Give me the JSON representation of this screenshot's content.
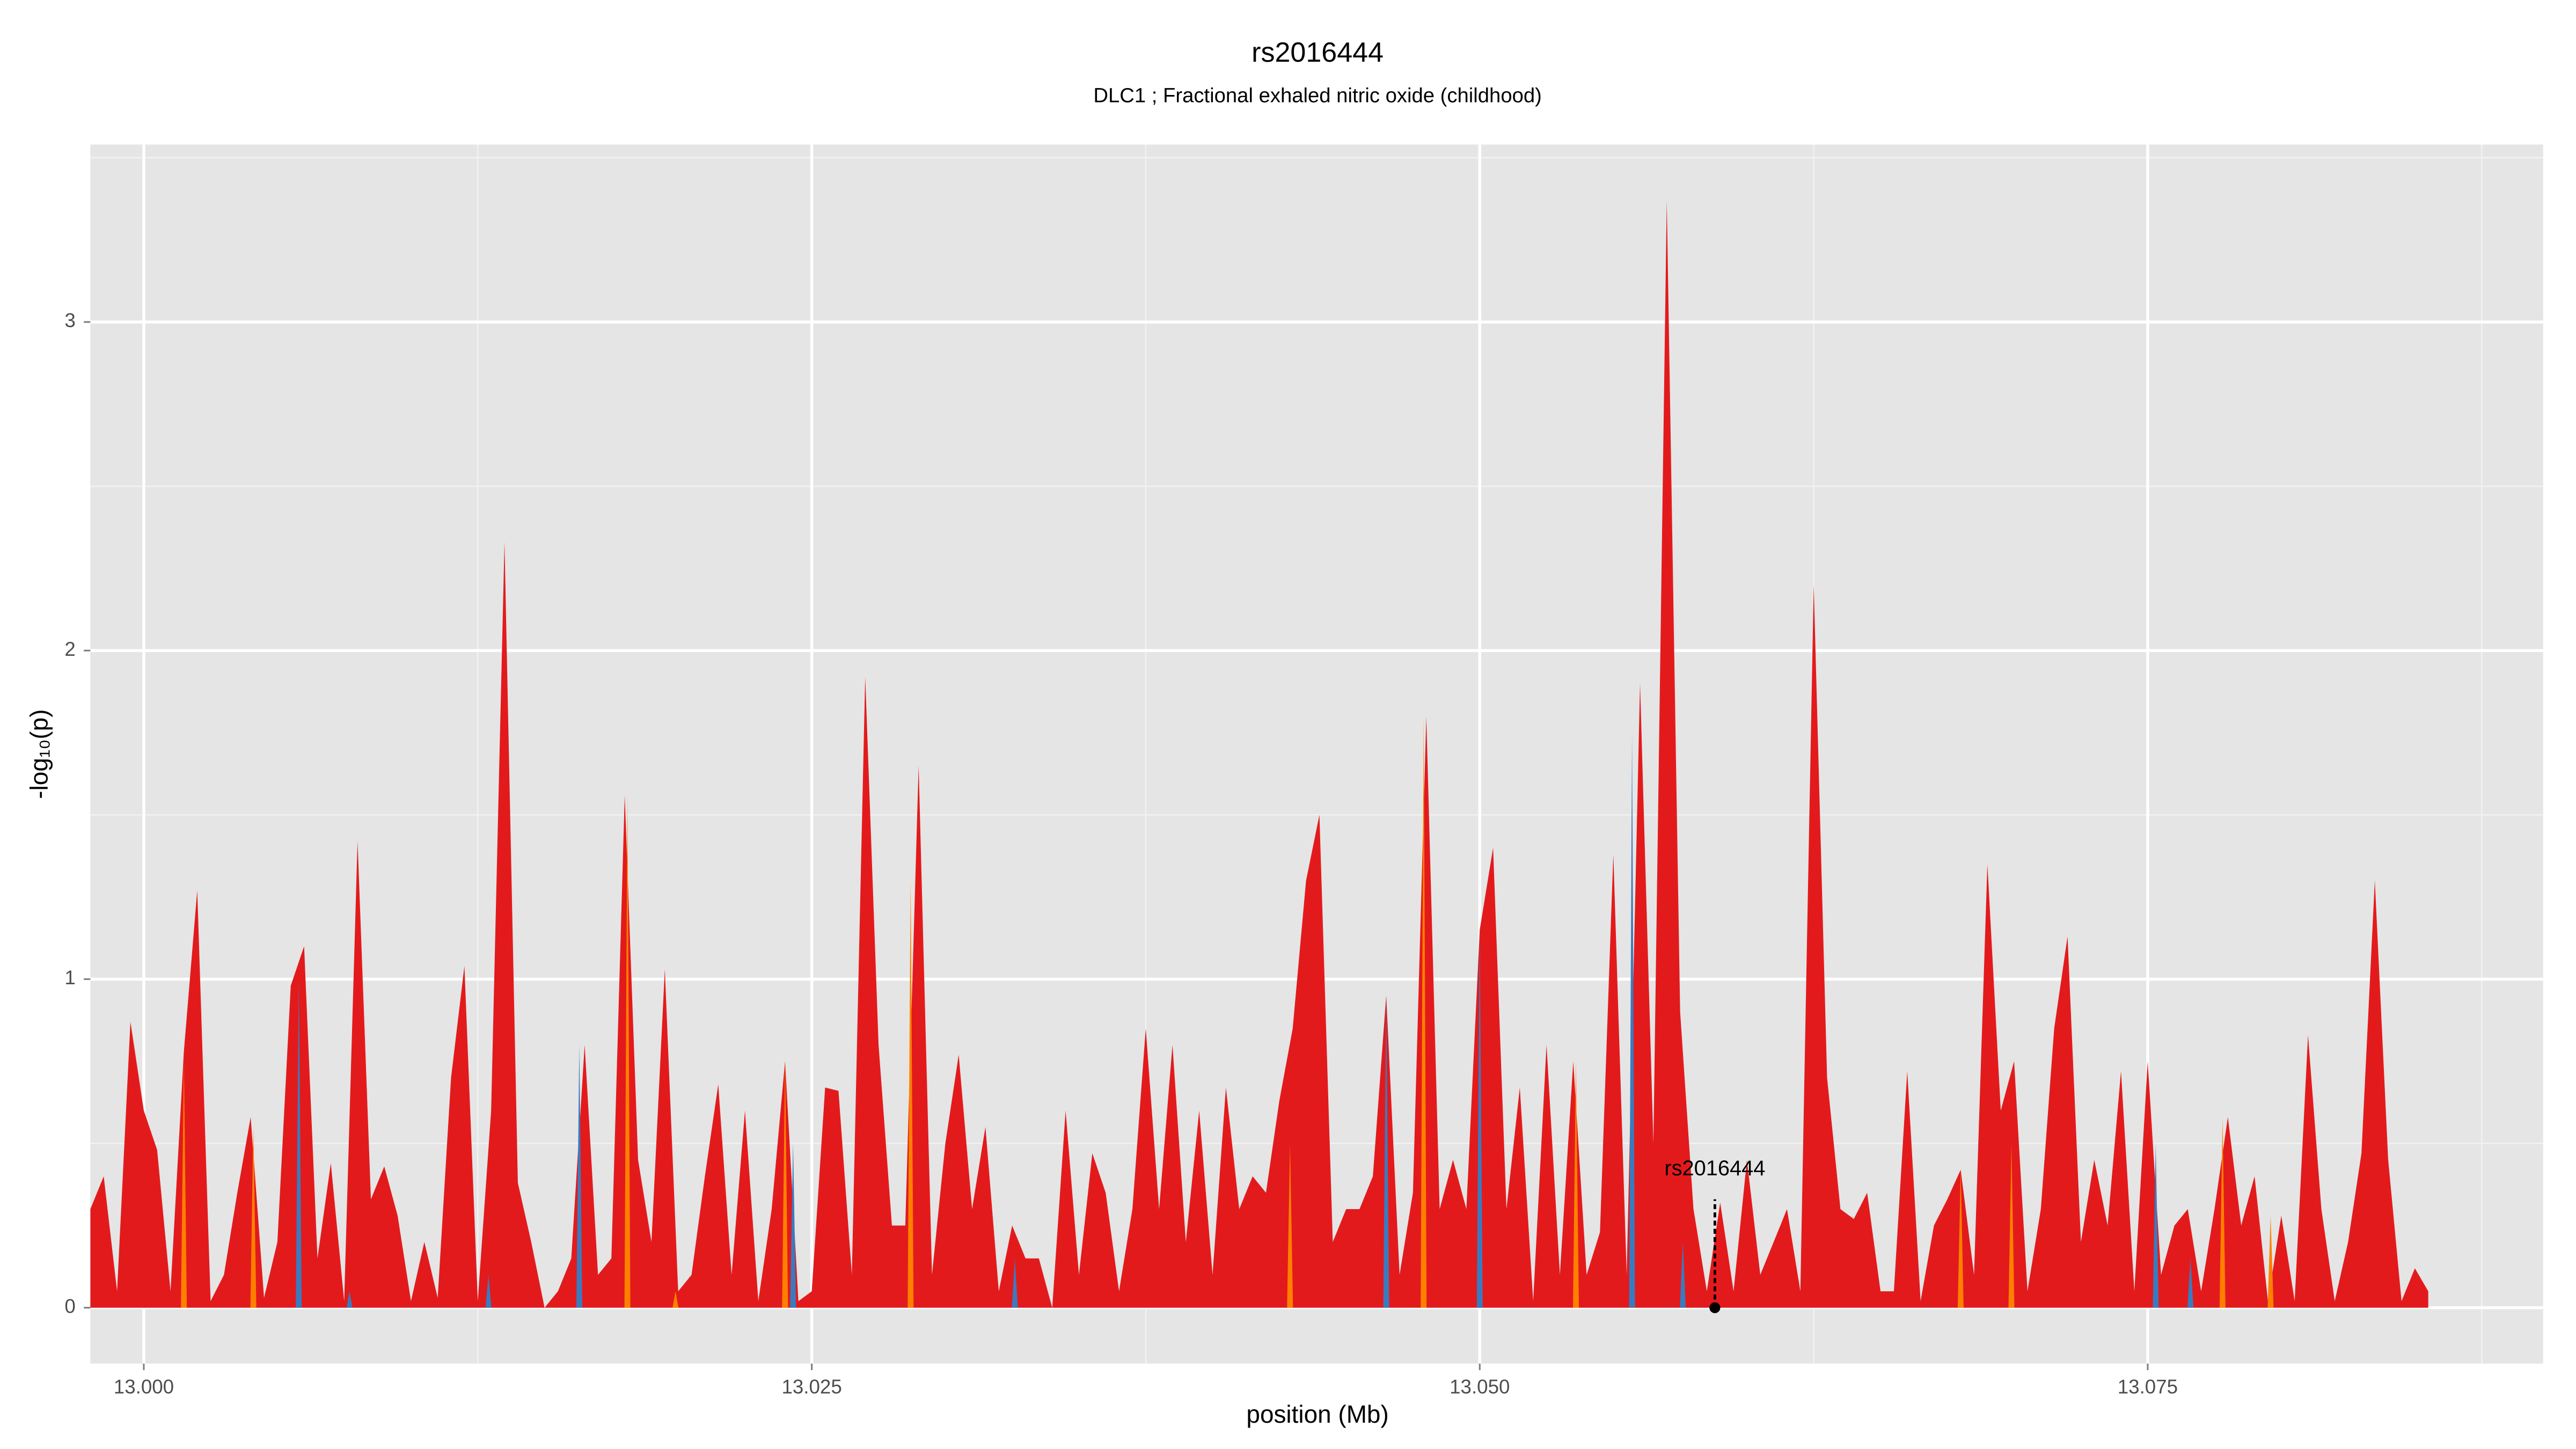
{
  "chart_data": {
    "type": "area",
    "title": "rs2016444",
    "subtitle": "DLC1 ; Fractional exhaled nitric oxide (childhood)",
    "xlabel": "position (Mb)",
    "ylabel": "-log₁₀(p)",
    "xlim": [
      12.998,
      13.0898
    ],
    "ylim": [
      -0.17,
      3.54
    ],
    "xticks": [
      {
        "value": 13.0,
        "label": "13.000"
      },
      {
        "value": 13.025,
        "label": "13.025"
      },
      {
        "value": 13.05,
        "label": "13.050"
      },
      {
        "value": 13.075,
        "label": "13.075"
      }
    ],
    "yticks": [
      0,
      1,
      2,
      3
    ],
    "xminorticks": [
      13.0125,
      13.0375,
      13.0625,
      13.0875
    ],
    "yminorticks": [
      0.5,
      1.5,
      2.5,
      3.5
    ],
    "grid": true,
    "series": [
      {
        "mark": "area",
        "color": "#e31a1c",
        "x": [
          12.998,
          12.9985,
          12.999,
          12.9995,
          13.0,
          13.0005,
          13.001,
          13.0015,
          13.002,
          13.0025,
          13.003,
          13.0035,
          13.004,
          13.0045,
          13.005,
          13.0055,
          13.006,
          13.0065,
          13.007,
          13.0075,
          13.008,
          13.0085,
          13.009,
          13.0095,
          13.01,
          13.0105,
          13.011,
          13.0115,
          13.012,
          13.0125,
          13.013,
          13.0135,
          13.014,
          13.0145,
          13.015,
          13.0155,
          13.016,
          13.0165,
          13.017,
          13.0175,
          13.018,
          13.0185,
          13.019,
          13.0195,
          13.02,
          13.0205,
          13.021,
          13.0215,
          13.022,
          13.0225,
          13.023,
          13.0235,
          13.024,
          13.0245,
          13.025,
          13.0255,
          13.026,
          13.0265,
          13.027,
          13.0275,
          13.028,
          13.0285,
          13.029,
          13.0295,
          13.03,
          13.0305,
          13.031,
          13.0315,
          13.032,
          13.0325,
          13.033,
          13.0335,
          13.034,
          13.0345,
          13.035,
          13.0355,
          13.036,
          13.0365,
          13.037,
          13.0375,
          13.038,
          13.0385,
          13.039,
          13.0395,
          13.04,
          13.0405,
          13.041,
          13.0415,
          13.042,
          13.0425,
          13.043,
          13.0435,
          13.044,
          13.0445,
          13.045,
          13.0455,
          13.046,
          13.0465,
          13.047,
          13.0475,
          13.048,
          13.0485,
          13.049,
          13.0495,
          13.05,
          13.0505,
          13.051,
          13.0515,
          13.052,
          13.0525,
          13.053,
          13.0535,
          13.054,
          13.0545,
          13.055,
          13.0555,
          13.056,
          13.0565,
          13.057,
          13.0575,
          13.058,
          13.0585,
          13.059,
          13.0595,
          13.06,
          13.0605,
          13.061,
          13.0615,
          13.062,
          13.0625,
          13.063,
          13.0635,
          13.064,
          13.0645,
          13.065,
          13.0655,
          13.066,
          13.0665,
          13.067,
          13.0675,
          13.068,
          13.0685,
          13.069,
          13.0695,
          13.07,
          13.0705,
          13.071,
          13.0715,
          13.072,
          13.0725,
          13.073,
          13.0735,
          13.074,
          13.0745,
          13.075,
          13.0755,
          13.076,
          13.0765,
          13.077,
          13.0775,
          13.078,
          13.0785,
          13.079,
          13.0795,
          13.08,
          13.0805,
          13.081,
          13.0815,
          13.082,
          13.0825,
          13.083,
          13.0835,
          13.084,
          13.0845,
          13.085,
          13.0855
        ],
        "values": [
          0.3,
          0.4,
          0.05,
          0.87,
          0.6,
          0.48,
          0.05,
          0.78,
          1.27,
          0.02,
          0.1,
          0.35,
          0.58,
          0.03,
          0.2,
          0.98,
          1.1,
          0.15,
          0.44,
          0.02,
          1.42,
          0.33,
          0.43,
          0.28,
          0.02,
          0.2,
          0.03,
          0.7,
          1.04,
          0.02,
          0.6,
          2.33,
          0.38,
          0.2,
          0.0,
          0.05,
          0.15,
          0.8,
          0.1,
          0.15,
          1.56,
          0.45,
          0.2,
          1.03,
          0.05,
          0.1,
          0.4,
          0.68,
          0.1,
          0.6,
          0.02,
          0.3,
          0.75,
          0.02,
          0.05,
          0.67,
          0.66,
          0.1,
          1.92,
          0.8,
          0.25,
          0.25,
          1.65,
          0.1,
          0.5,
          0.77,
          0.3,
          0.55,
          0.05,
          0.25,
          0.15,
          0.15,
          0.0,
          0.6,
          0.1,
          0.47,
          0.35,
          0.05,
          0.3,
          0.85,
          0.3,
          0.8,
          0.2,
          0.6,
          0.1,
          0.67,
          0.3,
          0.4,
          0.35,
          0.63,
          0.85,
          1.3,
          1.5,
          0.2,
          0.3,
          0.3,
          0.4,
          0.95,
          0.1,
          0.35,
          1.8,
          0.3,
          0.45,
          0.3,
          1.15,
          1.4,
          0.3,
          0.67,
          0.02,
          0.8,
          0.1,
          0.75,
          0.1,
          0.23,
          1.38,
          0.1,
          1.9,
          0.5,
          3.37,
          0.9,
          0.3,
          0.05,
          0.32,
          0.05,
          0.45,
          0.1,
          0.2,
          0.3,
          0.05,
          2.2,
          0.7,
          0.3,
          0.27,
          0.35,
          0.05,
          0.05,
          0.72,
          0.02,
          0.25,
          0.33,
          0.42,
          0.1,
          1.35,
          0.6,
          0.75,
          0.05,
          0.3,
          0.85,
          1.13,
          0.2,
          0.45,
          0.25,
          0.72,
          0.05,
          0.75,
          0.1,
          0.25,
          0.3,
          0.05,
          0.3,
          0.58,
          0.25,
          0.4,
          0.02,
          0.28,
          0.02,
          0.83,
          0.3,
          0.02,
          0.2,
          0.47,
          1.3,
          0.45,
          0.02,
          0.12,
          0.05
        ]
      },
      {
        "mark": "spike",
        "color": "#ff7f00",
        "x": [
          13.0015,
          13.0041,
          13.0181,
          13.0199,
          13.024,
          13.0287,
          13.0429,
          13.0479,
          13.0536,
          13.068,
          13.0699,
          13.0778,
          13.0796
        ],
        "values": [
          0.75,
          0.55,
          1.56,
          0.05,
          0.75,
          1.3,
          0.5,
          1.8,
          0.75,
          0.42,
          0.5,
          0.58,
          0.28
        ]
      },
      {
        "mark": "spike",
        "color": "#3a7bbf",
        "x": [
          13.0058,
          13.0077,
          13.0129,
          13.0163,
          13.0243,
          13.0326,
          13.0465,
          13.05,
          13.0557,
          13.0576,
          13.0753,
          13.0766
        ],
        "values": [
          1.0,
          0.05,
          0.1,
          0.8,
          0.5,
          0.15,
          0.95,
          1.15,
          1.75,
          0.2,
          0.5,
          0.15
        ]
      }
    ],
    "annotation": {
      "text": "rs2016444",
      "x": 13.0588,
      "y": 0,
      "line_top": 0.33,
      "label_y": 0.42
    }
  }
}
